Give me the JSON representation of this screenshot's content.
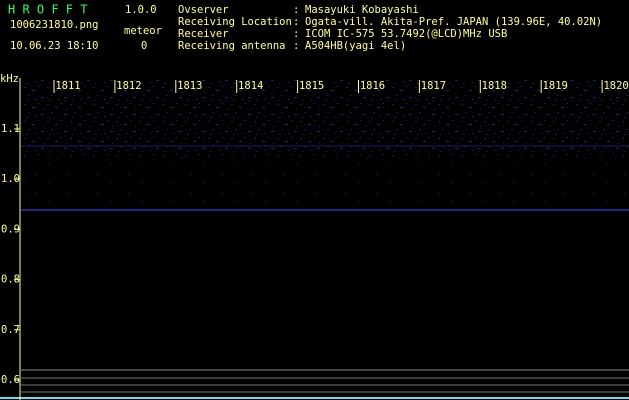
{
  "header": {
    "app_name": "H R O F F T",
    "version": "1.0.0",
    "file": "1006231810.png",
    "timestamp": "10.06.23 18:10",
    "meteor_label": "meteor",
    "meteor_count": "0"
  },
  "info": [
    {
      "label": "Ovserver",
      "value": "Masayuki Kobayashi"
    },
    {
      "label": "Receiving Location",
      "value": "Ogata-vill. Akita-Pref. JAPAN (139.96E, 40.02N)"
    },
    {
      "label": "Receiver",
      "value": "ICOM IC-575 53.7492(@LCD)MHz USB"
    },
    {
      "label": "Receiving antenna",
      "value": "A504HB(yagi 4el)"
    }
  ],
  "separator": ":",
  "axis": {
    "unit": "kHz",
    "minutes": [
      "1811",
      "1812",
      "1813",
      "1814",
      "1815",
      "1816",
      "1817",
      "1818",
      "1819",
      "1820"
    ],
    "freq": [
      "1.1",
      "1.0",
      "0.9",
      "0.8",
      "0.7",
      "0.6"
    ]
  }
}
